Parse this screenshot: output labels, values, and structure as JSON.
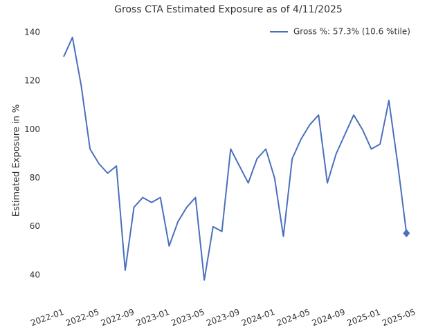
{
  "chart_data": {
    "type": "line",
    "title": "Gross CTA Estimated Exposure as of 4/11/2025",
    "ylabel": "Estimated Exposure in %",
    "x": [
      "2022-01",
      "2022-02",
      "2022-03",
      "2022-04",
      "2022-05",
      "2022-06",
      "2022-07",
      "2022-08",
      "2022-09",
      "2022-10",
      "2022-11",
      "2022-12",
      "2023-01",
      "2023-02",
      "2023-03",
      "2023-04",
      "2023-05",
      "2023-06",
      "2023-07",
      "2023-08",
      "2023-09",
      "2023-10",
      "2023-11",
      "2023-12",
      "2024-01",
      "2024-02",
      "2024-03",
      "2024-04",
      "2024-05",
      "2024-06",
      "2024-07",
      "2024-08",
      "2024-09",
      "2024-10",
      "2024-11",
      "2024-12",
      "2025-01",
      "2025-02",
      "2025-03",
      "2025-04"
    ],
    "series": [
      {
        "name": "Gross %:  57.3% (10.6 %tile)",
        "color": "#4a6fbd",
        "marker_last": "diamond",
        "values": [
          130,
          138,
          118,
          92,
          86,
          82,
          85,
          42,
          68,
          72,
          70,
          72,
          52,
          62,
          68,
          72,
          38,
          60,
          58,
          92,
          85,
          78,
          88,
          92,
          80,
          56,
          88,
          96,
          102,
          106,
          78,
          90,
          98,
          106,
          100,
          92,
          94,
          112,
          86,
          57.3
        ]
      }
    ],
    "xlim": [
      "2022-01",
      "2025-05"
    ],
    "xticks": [
      "2022-01",
      "2022-05",
      "2022-09",
      "2023-01",
      "2023-05",
      "2023-09",
      "2024-01",
      "2024-05",
      "2024-09",
      "2025-01",
      "2025-05"
    ],
    "ylim": [
      30,
      145
    ],
    "yticks": [
      40,
      60,
      80,
      100,
      120,
      140
    ],
    "grid": false,
    "legend": "upper right"
  }
}
